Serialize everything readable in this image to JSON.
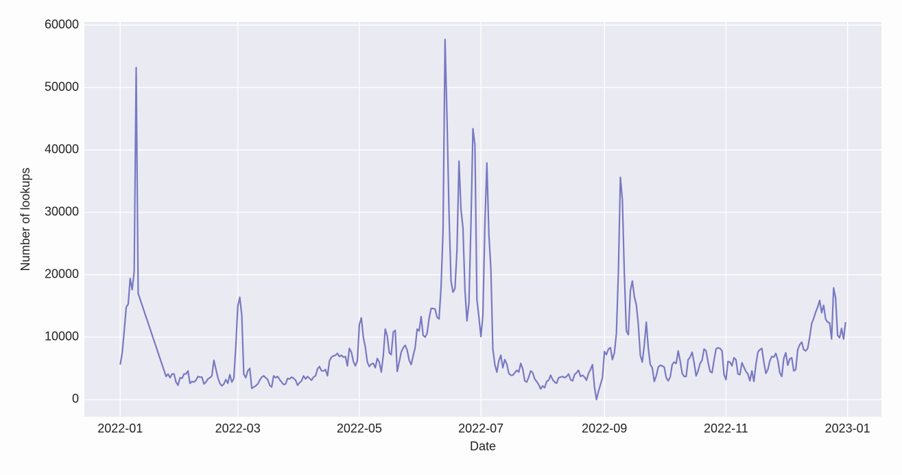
{
  "chart_data": {
    "type": "line",
    "xlabel": "Date",
    "ylabel": "Number of lookups",
    "color": "#7878c2",
    "grid": true,
    "xlim": [
      "2021-12-14",
      "2023-01-18"
    ],
    "xticks": [
      {
        "value": "2022-01-01",
        "label": "2022-01"
      },
      {
        "value": "2022-03-01",
        "label": "2022-03"
      },
      {
        "value": "2022-05-01",
        "label": "2022-05"
      },
      {
        "value": "2022-07-01",
        "label": "2022-07"
      },
      {
        "value": "2022-09-01",
        "label": "2022-09"
      },
      {
        "value": "2022-11-01",
        "label": "2022-11"
      },
      {
        "value": "2023-01-01",
        "label": "2023-01"
      }
    ],
    "ylim": [
      -2750,
      60500
    ],
    "yticks": [
      0,
      10000,
      20000,
      30000,
      40000,
      50000,
      60000
    ],
    "x": [
      "2022-01-01",
      "2022-01-02",
      "2022-01-03",
      "2022-01-04",
      "2022-01-05",
      "2022-01-06",
      "2022-01-07",
      "2022-01-08",
      "2022-01-09",
      "2022-01-10",
      "2022-01-24",
      "2022-01-25",
      "2022-01-26",
      "2022-01-27",
      "2022-01-28",
      "2022-01-29",
      "2022-01-30",
      "2022-01-31",
      "2022-02-01",
      "2022-02-02",
      "2022-02-03",
      "2022-02-04",
      "2022-02-05",
      "2022-02-06",
      "2022-02-07",
      "2022-02-08",
      "2022-02-09",
      "2022-02-10",
      "2022-02-11",
      "2022-02-12",
      "2022-02-13",
      "2022-02-14",
      "2022-02-15",
      "2022-02-16",
      "2022-02-17",
      "2022-02-18",
      "2022-02-19",
      "2022-02-20",
      "2022-02-21",
      "2022-02-22",
      "2022-02-23",
      "2022-02-24",
      "2022-02-25",
      "2022-02-26",
      "2022-02-27",
      "2022-02-28",
      "2022-03-01",
      "2022-03-02",
      "2022-03-03",
      "2022-03-04",
      "2022-03-05",
      "2022-03-06",
      "2022-03-07",
      "2022-03-08",
      "2022-03-09",
      "2022-03-10",
      "2022-03-11",
      "2022-03-12",
      "2022-03-13",
      "2022-03-14",
      "2022-03-15",
      "2022-03-16",
      "2022-03-17",
      "2022-03-18",
      "2022-03-19",
      "2022-03-20",
      "2022-03-21",
      "2022-03-22",
      "2022-03-23",
      "2022-03-24",
      "2022-03-25",
      "2022-03-26",
      "2022-03-27",
      "2022-03-28",
      "2022-03-29",
      "2022-03-30",
      "2022-03-31",
      "2022-04-01",
      "2022-04-02",
      "2022-04-03",
      "2022-04-04",
      "2022-04-05",
      "2022-04-06",
      "2022-04-07",
      "2022-04-08",
      "2022-04-09",
      "2022-04-10",
      "2022-04-11",
      "2022-04-12",
      "2022-04-13",
      "2022-04-14",
      "2022-04-15",
      "2022-04-16",
      "2022-04-17",
      "2022-04-18",
      "2022-04-19",
      "2022-04-20",
      "2022-04-21",
      "2022-04-22",
      "2022-04-23",
      "2022-04-24",
      "2022-04-25",
      "2022-04-26",
      "2022-04-27",
      "2022-04-28",
      "2022-04-29",
      "2022-04-30",
      "2022-05-01",
      "2022-05-02",
      "2022-05-03",
      "2022-05-04",
      "2022-05-05",
      "2022-05-06",
      "2022-05-07",
      "2022-05-08",
      "2022-05-09",
      "2022-05-10",
      "2022-05-11",
      "2022-05-12",
      "2022-05-13",
      "2022-05-14",
      "2022-05-15",
      "2022-05-16",
      "2022-05-17",
      "2022-05-18",
      "2022-05-19",
      "2022-05-20",
      "2022-05-21",
      "2022-05-22",
      "2022-05-23",
      "2022-05-24",
      "2022-05-25",
      "2022-05-26",
      "2022-05-27",
      "2022-05-28",
      "2022-05-29",
      "2022-05-30",
      "2022-05-31",
      "2022-06-01",
      "2022-06-02",
      "2022-06-03",
      "2022-06-04",
      "2022-06-05",
      "2022-06-06",
      "2022-06-07",
      "2022-06-08",
      "2022-06-09",
      "2022-06-10",
      "2022-06-11",
      "2022-06-12",
      "2022-06-13",
      "2022-06-14",
      "2022-06-15",
      "2022-06-16",
      "2022-06-17",
      "2022-06-18",
      "2022-06-19",
      "2022-06-20",
      "2022-06-21",
      "2022-06-22",
      "2022-06-23",
      "2022-06-24",
      "2022-06-25",
      "2022-06-26",
      "2022-06-27",
      "2022-06-28",
      "2022-06-29",
      "2022-06-30",
      "2022-07-01",
      "2022-07-02",
      "2022-07-03",
      "2022-07-04",
      "2022-07-05",
      "2022-07-06",
      "2022-07-07",
      "2022-07-08",
      "2022-07-09",
      "2022-07-10",
      "2022-07-11",
      "2022-07-12",
      "2022-07-13",
      "2022-07-14",
      "2022-07-15",
      "2022-07-16",
      "2022-07-17",
      "2022-07-18",
      "2022-07-19",
      "2022-07-20",
      "2022-07-21",
      "2022-07-22",
      "2022-07-23",
      "2022-07-24",
      "2022-07-25",
      "2022-07-26",
      "2022-07-27",
      "2022-07-28",
      "2022-07-29",
      "2022-07-30",
      "2022-07-31",
      "2022-08-01",
      "2022-08-02",
      "2022-08-03",
      "2022-08-04",
      "2022-08-05",
      "2022-08-06",
      "2022-08-07",
      "2022-08-08",
      "2022-08-09",
      "2022-08-10",
      "2022-08-11",
      "2022-08-12",
      "2022-08-13",
      "2022-08-14",
      "2022-08-15",
      "2022-08-16",
      "2022-08-17",
      "2022-08-18",
      "2022-08-19",
      "2022-08-20",
      "2022-08-21",
      "2022-08-22",
      "2022-08-23",
      "2022-08-24",
      "2022-08-25",
      "2022-08-26",
      "2022-08-27",
      "2022-08-28",
      "2022-08-29",
      "2022-08-30",
      "2022-08-31",
      "2022-09-01",
      "2022-09-02",
      "2022-09-03",
      "2022-09-04",
      "2022-09-05",
      "2022-09-06",
      "2022-09-07",
      "2022-09-08",
      "2022-09-09",
      "2022-09-10",
      "2022-09-11",
      "2022-09-12",
      "2022-09-13",
      "2022-09-14",
      "2022-09-15",
      "2022-09-16",
      "2022-09-17",
      "2022-09-18",
      "2022-09-19",
      "2022-09-20",
      "2022-09-21",
      "2022-09-22",
      "2022-09-23",
      "2022-09-24",
      "2022-09-25",
      "2022-09-26",
      "2022-09-27",
      "2022-09-28",
      "2022-09-29",
      "2022-09-30",
      "2022-10-01",
      "2022-10-02",
      "2022-10-03",
      "2022-10-04",
      "2022-10-05",
      "2022-10-06",
      "2022-10-07",
      "2022-10-08",
      "2022-10-09",
      "2022-10-10",
      "2022-10-11",
      "2022-10-12",
      "2022-10-13",
      "2022-10-14",
      "2022-10-15",
      "2022-10-16",
      "2022-10-17",
      "2022-10-18",
      "2022-10-19",
      "2022-10-20",
      "2022-10-21",
      "2022-10-22",
      "2022-10-23",
      "2022-10-24",
      "2022-10-25",
      "2022-10-26",
      "2022-10-27",
      "2022-10-28",
      "2022-10-29",
      "2022-10-30",
      "2022-10-31",
      "2022-11-01",
      "2022-11-02",
      "2022-11-03",
      "2022-11-04",
      "2022-11-05",
      "2022-11-06",
      "2022-11-07",
      "2022-11-08",
      "2022-11-09",
      "2022-11-10",
      "2022-11-11",
      "2022-11-12",
      "2022-11-13",
      "2022-11-14",
      "2022-11-15",
      "2022-11-16",
      "2022-11-17",
      "2022-11-18",
      "2022-11-19",
      "2022-11-20",
      "2022-11-21",
      "2022-11-22",
      "2022-11-23",
      "2022-11-24",
      "2022-11-25",
      "2022-11-26",
      "2022-11-27",
      "2022-11-28",
      "2022-11-29",
      "2022-11-30",
      "2022-12-01",
      "2022-12-02",
      "2022-12-03",
      "2022-12-04",
      "2022-12-05",
      "2022-12-06",
      "2022-12-07",
      "2022-12-08",
      "2022-12-09",
      "2022-12-10",
      "2022-12-11",
      "2022-12-12",
      "2022-12-13",
      "2022-12-14",
      "2022-12-15",
      "2022-12-16",
      "2022-12-17",
      "2022-12-18",
      "2022-12-19",
      "2022-12-20",
      "2022-12-21",
      "2022-12-22",
      "2022-12-23",
      "2022-12-24",
      "2022-12-25",
      "2022-12-26",
      "2022-12-27",
      "2022-12-28",
      "2022-12-29",
      "2022-12-30",
      "2022-12-31"
    ],
    "values": [
      5600,
      7500,
      11000,
      14800,
      15300,
      19400,
      17600,
      20500,
      53200,
      17000,
      3700,
      4100,
      3500,
      4100,
      4100,
      2800,
      2300,
      3500,
      3400,
      4100,
      4100,
      4600,
      2600,
      2900,
      2800,
      3100,
      3700,
      3600,
      3600,
      2500,
      2800,
      3300,
      3500,
      3800,
      6300,
      4900,
      3500,
      2600,
      2200,
      2500,
      3200,
      2600,
      4000,
      2800,
      3400,
      8500,
      15000,
      16400,
      13500,
      4100,
      3500,
      4600,
      5000,
      1800,
      2000,
      2200,
      2500,
      3100,
      3600,
      3800,
      3500,
      3200,
      2300,
      2000,
      3800,
      3500,
      3700,
      3200,
      2800,
      2400,
      2500,
      3400,
      3300,
      3600,
      3400,
      3100,
      2300,
      2700,
      3000,
      3800,
      3300,
      3700,
      3400,
      3100,
      3600,
      3800,
      4900,
      5300,
      4600,
      4600,
      4800,
      3800,
      6200,
      6800,
      7000,
      7100,
      7400,
      6900,
      7100,
      6800,
      6900,
      5400,
      8200,
      7600,
      6100,
      5400,
      6200,
      12000,
      13100,
      10000,
      8400,
      6000,
      5300,
      5700,
      5800,
      5100,
      6600,
      6000,
      4400,
      7000,
      11300,
      10200,
      7500,
      7200,
      10800,
      11100,
      4500,
      6000,
      7600,
      8300,
      8700,
      7900,
      6300,
      5600,
      7000,
      8300,
      11300,
      11000,
      13300,
      10300,
      10000,
      10600,
      13000,
      14600,
      14600,
      14500,
      13200,
      12900,
      18000,
      27000,
      57700,
      45000,
      30000,
      19000,
      17200,
      17800,
      24000,
      38200,
      30500,
      27500,
      17500,
      12600,
      15500,
      28000,
      43400,
      40800,
      16000,
      13200,
      10100,
      13500,
      28000,
      37900,
      26500,
      21000,
      8100,
      5600,
      4400,
      6200,
      7100,
      5100,
      6400,
      5700,
      4200,
      3900,
      3900,
      4300,
      4700,
      4400,
      5800,
      4900,
      3000,
      2800,
      3600,
      4600,
      4300,
      3300,
      2900,
      2400,
      1700,
      2200,
      1900,
      2900,
      3100,
      3900,
      3200,
      2800,
      2600,
      3500,
      3600,
      3700,
      3500,
      3700,
      4100,
      3200,
      3000,
      4000,
      4300,
      4700,
      3700,
      3900,
      3600,
      3100,
      4200,
      4800,
      5600,
      2000,
      0,
      1300,
      2400,
      3500,
      7700,
      7200,
      8100,
      8300,
      6400,
      7500,
      10600,
      20500,
      35600,
      32000,
      20000,
      11000,
      10400,
      17400,
      19000,
      16500,
      15200,
      12000,
      7100,
      6000,
      8800,
      12400,
      8300,
      5600,
      5100,
      2900,
      3800,
      5200,
      5500,
      5400,
      5200,
      3500,
      3000,
      3600,
      5600,
      6000,
      5800,
      7800,
      6200,
      4200,
      3700,
      3700,
      6400,
      6800,
      7600,
      5900,
      3800,
      4600,
      5800,
      6300,
      8100,
      7800,
      6000,
      4500,
      4300,
      6300,
      8100,
      8300,
      8200,
      7800,
      4000,
      3200,
      6100,
      6000,
      5400,
      6700,
      6400,
      4100,
      4000,
      5900,
      5200,
      4500,
      4100,
      3000,
      4600,
      2900,
      5600,
      7600,
      8000,
      8200,
      6000,
      4200,
      4800,
      6200,
      6900,
      6800,
      7400,
      6300,
      4300,
      3700,
      6600,
      7500,
      5500,
      6500,
      6700,
      4600,
      4800,
      8000,
      8800,
      9200,
      8000,
      7800,
      8200,
      10000,
      12200,
      13000,
      14000,
      14800,
      15900,
      13900,
      15100,
      12900,
      12400,
      12300,
      9700,
      17900,
      16300,
      10300,
      9900,
      11400,
      9700,
      12400
    ]
  }
}
